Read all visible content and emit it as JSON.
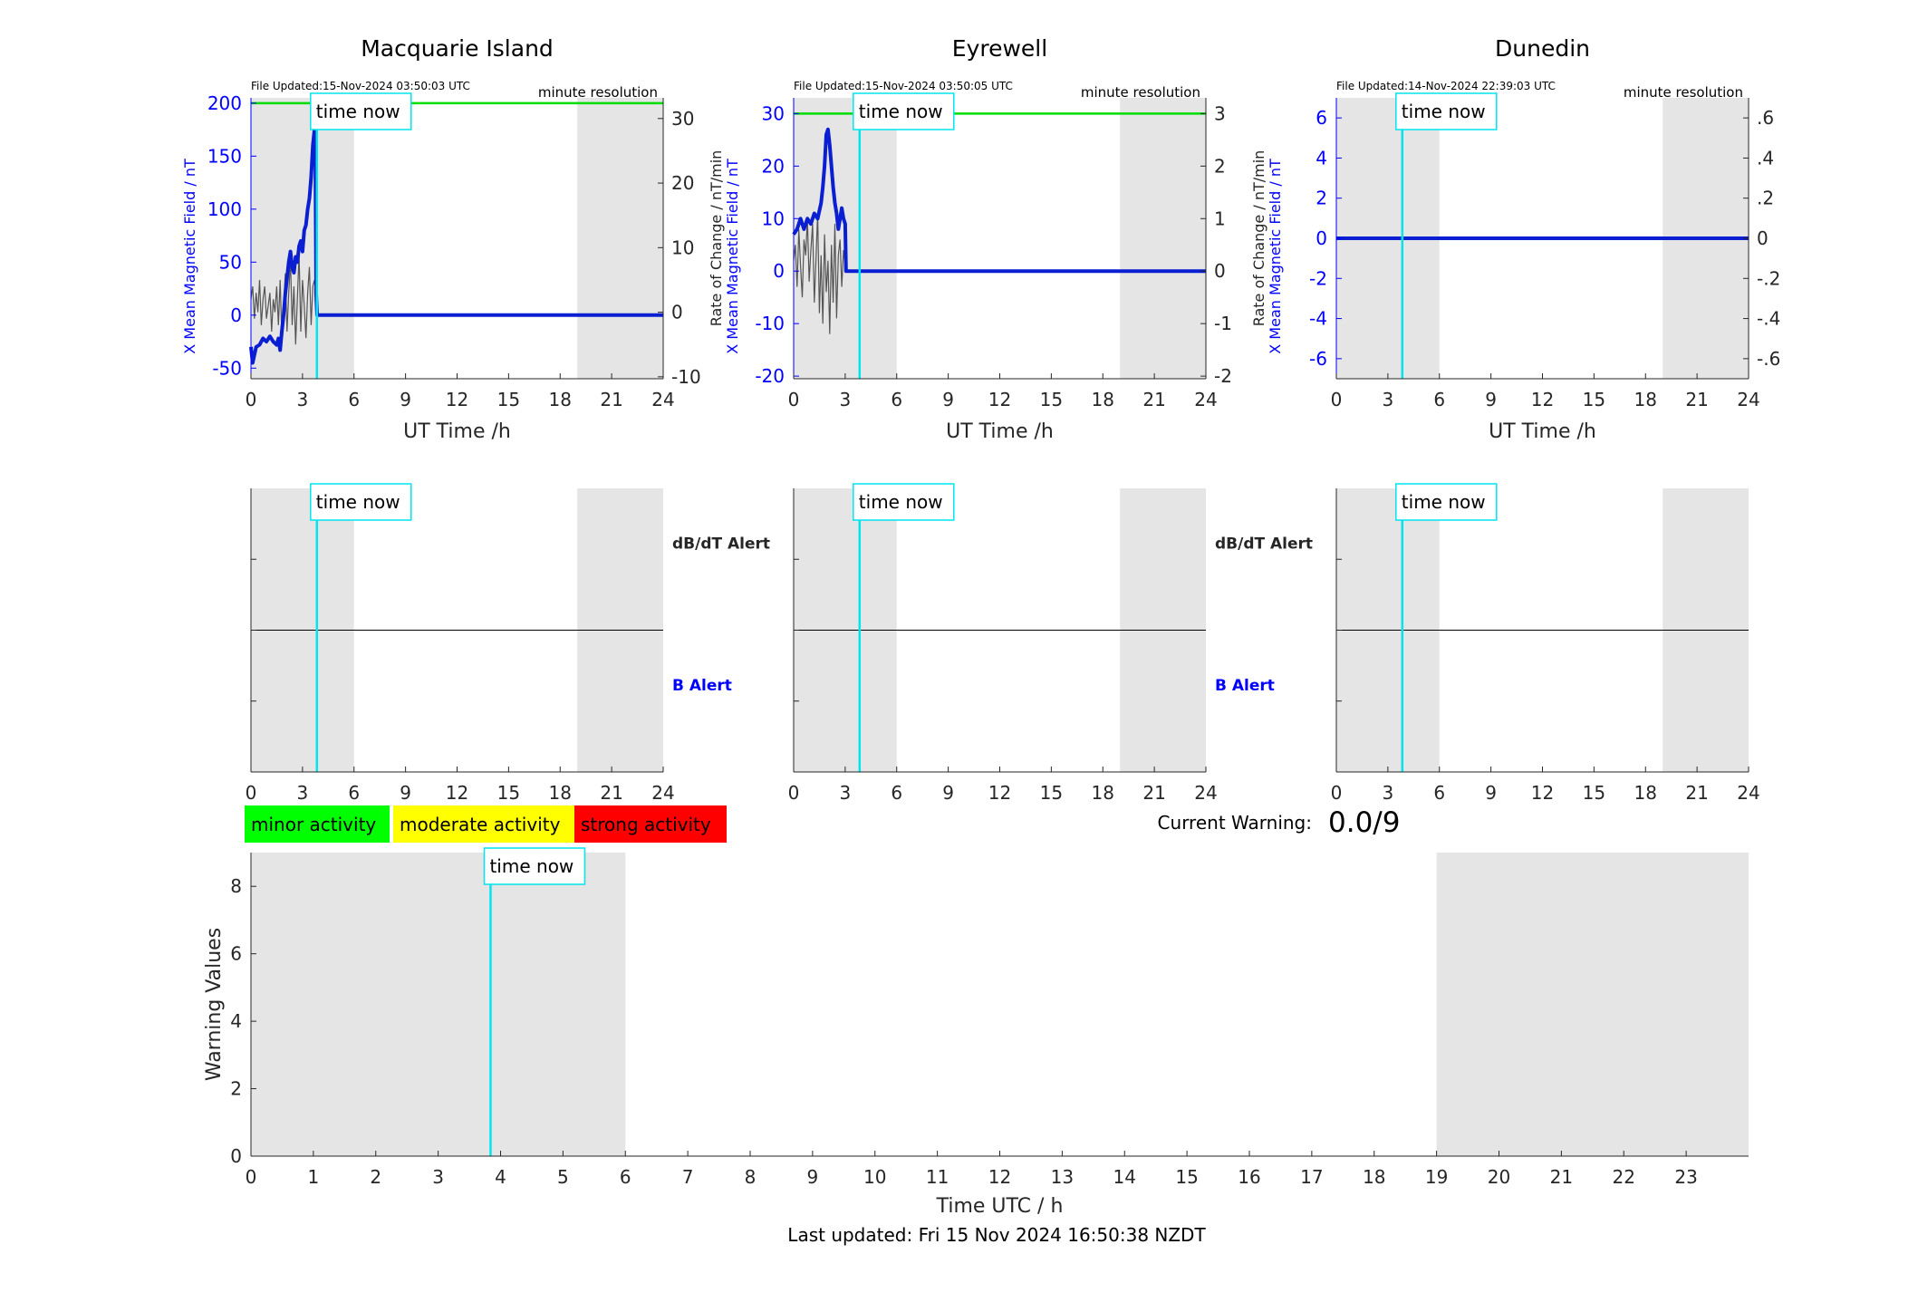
{
  "figure": {
    "time_now_label": "time now",
    "now_hour": 3.84,
    "night_shading": [
      [
        0,
        6
      ],
      [
        19,
        24
      ]
    ],
    "current_warning_label": "Current Warning:",
    "current_warning_value": "0.0/9",
    "last_updated": "Last updated: Fri 15 Nov 2024 16:50:38 NZDT",
    "legend": [
      {
        "label": "minor activity",
        "color": "#00ff00"
      },
      {
        "label": "moderate activity",
        "color": "#ffff00"
      },
      {
        "label": "strong activity",
        "color": "#ff0000"
      }
    ],
    "colors": {
      "field_axis": "#0000ff",
      "field_line": "#0a1ed2",
      "rate_line": "#555555",
      "limit_line": "#00dd00",
      "time_now": "#00e5ee",
      "night": "#e5e5e5"
    }
  },
  "chart_data": [
    {
      "type": "line",
      "title": "Macquarie Island",
      "file_updated": "File Updated:15-Nov-2024 03:50:03 UTC",
      "resolution": "minute resolution",
      "xlabel": "UT Time /h",
      "ylabel": "X Mean Magnetic Field / nT",
      "y2label": "",
      "xlim": [
        0,
        24
      ],
      "xticks": [
        0,
        3,
        6,
        9,
        12,
        15,
        18,
        21,
        24
      ],
      "ylim": [
        -60,
        205
      ],
      "yticks": [
        -50,
        0,
        50,
        100,
        150,
        200
      ],
      "y2lim": [
        -10.3,
        33.2
      ],
      "y2ticks": [
        -10,
        0,
        10,
        20,
        30
      ],
      "limit_line_y": 200,
      "series": [
        {
          "role": "field",
          "x": [
            0,
            0.1,
            0.3,
            0.5,
            0.7,
            0.9,
            1.1,
            1.3,
            1.5,
            1.6,
            1.7,
            1.8,
            1.9,
            2.0,
            2.1,
            2.2,
            2.3,
            2.4,
            2.5,
            2.6,
            2.7,
            2.8,
            2.9,
            3.0,
            3.1,
            3.2,
            3.3,
            3.4,
            3.5,
            3.6,
            3.7,
            3.75,
            3.8,
            3.85,
            24
          ],
          "y": [
            -30,
            -45,
            -30,
            -28,
            -22,
            -25,
            -20,
            -25,
            -28,
            -22,
            -33,
            -15,
            0,
            20,
            35,
            50,
            60,
            45,
            40,
            55,
            50,
            65,
            70,
            60,
            80,
            85,
            100,
            110,
            130,
            160,
            175,
            145,
            20,
            0,
            0
          ]
        },
        {
          "role": "rate_of_change",
          "x": [
            0,
            0.1,
            0.2,
            0.3,
            0.4,
            0.5,
            0.6,
            0.7,
            0.8,
            0.9,
            1.0,
            1.1,
            1.2,
            1.3,
            1.4,
            1.5,
            1.6,
            1.7,
            1.8,
            1.9,
            2.0,
            2.1,
            2.2,
            2.3,
            2.4,
            2.5,
            2.6,
            2.7,
            2.8,
            2.9,
            3.0,
            3.1,
            3.2,
            3.3,
            3.4,
            3.5,
            3.6,
            3.7,
            3.8,
            3.85
          ],
          "y": [
            2,
            4,
            -1,
            3,
            0,
            5,
            -2,
            2,
            4,
            -1,
            1,
            3,
            -3,
            2,
            0,
            4,
            -2,
            5,
            -4,
            1,
            6,
            -3,
            3,
            8,
            -2,
            4,
            -5,
            2,
            9,
            -3,
            5,
            1,
            -4,
            3,
            7,
            -2,
            4,
            5,
            2,
            0
          ]
        }
      ]
    },
    {
      "type": "line",
      "title": "Eyrewell",
      "file_updated": "File Updated:15-Nov-2024 03:50:05 UTC",
      "resolution": "minute resolution",
      "xlabel": "UT Time /h",
      "ylabel": "X Mean Magnetic Field / nT",
      "y2label": "Rate of Change / nT/min",
      "xlim": [
        0,
        24
      ],
      "xticks": [
        0,
        3,
        6,
        9,
        12,
        15,
        18,
        21,
        24
      ],
      "ylim": [
        -20.5,
        33
      ],
      "yticks": [
        -20,
        -10,
        0,
        10,
        20,
        30
      ],
      "y2lim": [
        -2.05,
        3.3
      ],
      "y2ticks": [
        -2,
        -1,
        0,
        1,
        2,
        3
      ],
      "limit_line_y": 30,
      "series": [
        {
          "role": "field",
          "x": [
            0,
            0.2,
            0.4,
            0.6,
            0.8,
            1.0,
            1.2,
            1.4,
            1.6,
            1.7,
            1.8,
            1.9,
            2.0,
            2.1,
            2.2,
            2.3,
            2.4,
            2.5,
            2.6,
            2.7,
            2.8,
            2.9,
            3.0,
            3.05,
            3.1,
            24
          ],
          "y": [
            7,
            8,
            10,
            8,
            10,
            9,
            11,
            10,
            13,
            16,
            20,
            26,
            27,
            24,
            20,
            16,
            13,
            11,
            8,
            10,
            12,
            10,
            9,
            0,
            0,
            0
          ]
        },
        {
          "role": "rate_of_change",
          "x": [
            0,
            0.1,
            0.2,
            0.3,
            0.4,
            0.5,
            0.6,
            0.7,
            0.8,
            0.9,
            1.0,
            1.1,
            1.2,
            1.3,
            1.4,
            1.5,
            1.6,
            1.7,
            1.8,
            1.9,
            2.0,
            2.1,
            2.2,
            2.3,
            2.4,
            2.5,
            2.6,
            2.7,
            2.8,
            2.9,
            3.0,
            3.05
          ],
          "y": [
            0.2,
            0.5,
            -0.3,
            0.8,
            0.1,
            -0.5,
            0.6,
            0.3,
            1.0,
            -0.2,
            0.4,
            0.9,
            -0.6,
            0.2,
            1.1,
            -0.8,
            0.3,
            -1.0,
            0.7,
            -0.4,
            0.2,
            -1.2,
            0.5,
            -0.6,
            0.9,
            -0.9,
            0.3,
            0.6,
            -0.3,
            0.4,
            0.1,
            0
          ]
        }
      ]
    },
    {
      "type": "line",
      "title": "Dunedin",
      "file_updated": "File Updated:14-Nov-2024 22:39:03 UTC",
      "resolution": "minute resolution",
      "xlabel": "UT Time /h",
      "ylabel": "X Mean Magnetic Field / nT",
      "y2label": "Rate of Change / nT/min",
      "xlim": [
        0,
        24
      ],
      "xticks": [
        0,
        3,
        6,
        9,
        12,
        15,
        18,
        21,
        24
      ],
      "ylim": [
        -7,
        7
      ],
      "yticks": [
        -6,
        -4,
        -2,
        0,
        2,
        4,
        6
      ],
      "y2lim": [
        -0.7,
        0.7
      ],
      "y2ticks": [
        -0.6,
        -0.4,
        -0.2,
        0,
        0.2,
        0.4,
        0.6
      ],
      "series": [
        {
          "role": "field",
          "x": [
            0,
            24
          ],
          "y": [
            0,
            0
          ]
        }
      ]
    },
    {
      "type": "line",
      "subtype": "alert",
      "station": "Macquarie Island",
      "xlim": [
        0,
        24
      ],
      "xticks": [
        0,
        3,
        6,
        9,
        12,
        15,
        18,
        21,
        24
      ],
      "upper_label": "dB/dT Alert",
      "lower_label": "B Alert"
    },
    {
      "type": "line",
      "subtype": "alert",
      "station": "Eyrewell",
      "xlim": [
        0,
        24
      ],
      "xticks": [
        0,
        3,
        6,
        9,
        12,
        15,
        18,
        21,
        24
      ],
      "upper_label": "dB/dT Alert",
      "lower_label": "B Alert"
    },
    {
      "type": "line",
      "subtype": "alert",
      "station": "Dunedin",
      "xlim": [
        0,
        24
      ],
      "xticks": [
        0,
        3,
        6,
        9,
        12,
        15,
        18,
        21,
        24
      ]
    },
    {
      "type": "line",
      "subtype": "warning",
      "xlabel": "Time UTC / h",
      "ylabel": "Warning Values",
      "xlim": [
        0,
        24
      ],
      "xticks": [
        0,
        1,
        2,
        3,
        4,
        5,
        6,
        7,
        8,
        9,
        10,
        11,
        12,
        13,
        14,
        15,
        16,
        17,
        18,
        19,
        20,
        21,
        22,
        23
      ],
      "ylim": [
        0,
        9
      ],
      "yticks": [
        0,
        2,
        4,
        6,
        8
      ]
    }
  ]
}
